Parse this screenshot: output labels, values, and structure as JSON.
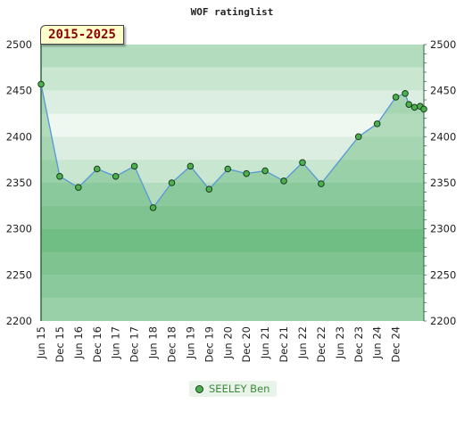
{
  "chart_data": {
    "type": "line",
    "title": "WOF ratinglist",
    "period_label": "2015-2025",
    "ylim": [
      2200,
      2500
    ],
    "y_ticks": [
      2200,
      2250,
      2300,
      2350,
      2400,
      2450,
      2500
    ],
    "x_ticks": [
      "Jun 15",
      "Dec 15",
      "Jun 16",
      "Dec 16",
      "Jun 17",
      "Dec 17",
      "Jun 18",
      "Dec 18",
      "Jun 19",
      "Dec 19",
      "Jun 20",
      "Dec 20",
      "Jun 21",
      "Dec 21",
      "Jun 22",
      "Dec 22",
      "Jun 23",
      "Dec 23",
      "Jun 24",
      "Dec 24"
    ],
    "bands": [
      {
        "from": 2475,
        "to": 2500,
        "color": "#b3dcbf"
      },
      {
        "from": 2450,
        "to": 2475,
        "color": "#c9e6d1"
      },
      {
        "from": 2425,
        "to": 2450,
        "color": "#dceee1"
      },
      {
        "from": 2400,
        "to": 2425,
        "color": "#eef7f0"
      },
      {
        "from": 2375,
        "to": 2400,
        "color": "#dceee1"
      },
      {
        "from": 2350,
        "to": 2375,
        "color": "#c9e6d1"
      },
      {
        "from": 2325,
        "to": 2350,
        "color": "#b3dcbf"
      },
      {
        "from": 2300,
        "to": 2325,
        "color": "#a0d3ae"
      },
      {
        "from": 2275,
        "to": 2300,
        "color": "#8ccb9d"
      },
      {
        "from": 2250,
        "to": 2275,
        "color": "#a0d3ae"
      },
      {
        "from": 2225,
        "to": 2250,
        "color": "#b3dcbf"
      },
      {
        "from": 2200,
        "to": 2225,
        "color": "#c9e6d1"
      }
    ],
    "series": [
      {
        "name": "SEELEY Ben",
        "color": "#4caf50",
        "line_color": "#5b9bd5",
        "x": [
          0,
          1,
          2,
          3,
          4,
          5,
          6,
          7,
          8,
          9,
          10,
          11,
          12,
          13,
          14,
          15,
          17,
          18,
          19,
          19.5,
          19.7,
          20.0,
          20.3,
          20.5
        ],
        "values": [
          2457,
          2357,
          2345,
          2365,
          2357,
          2368,
          2323,
          2350,
          2368,
          2343,
          2365,
          2360,
          2363,
          2352,
          2372,
          2349,
          2400,
          2414,
          2443,
          2447,
          2435,
          2432,
          2433,
          2430
        ]
      }
    ]
  }
}
